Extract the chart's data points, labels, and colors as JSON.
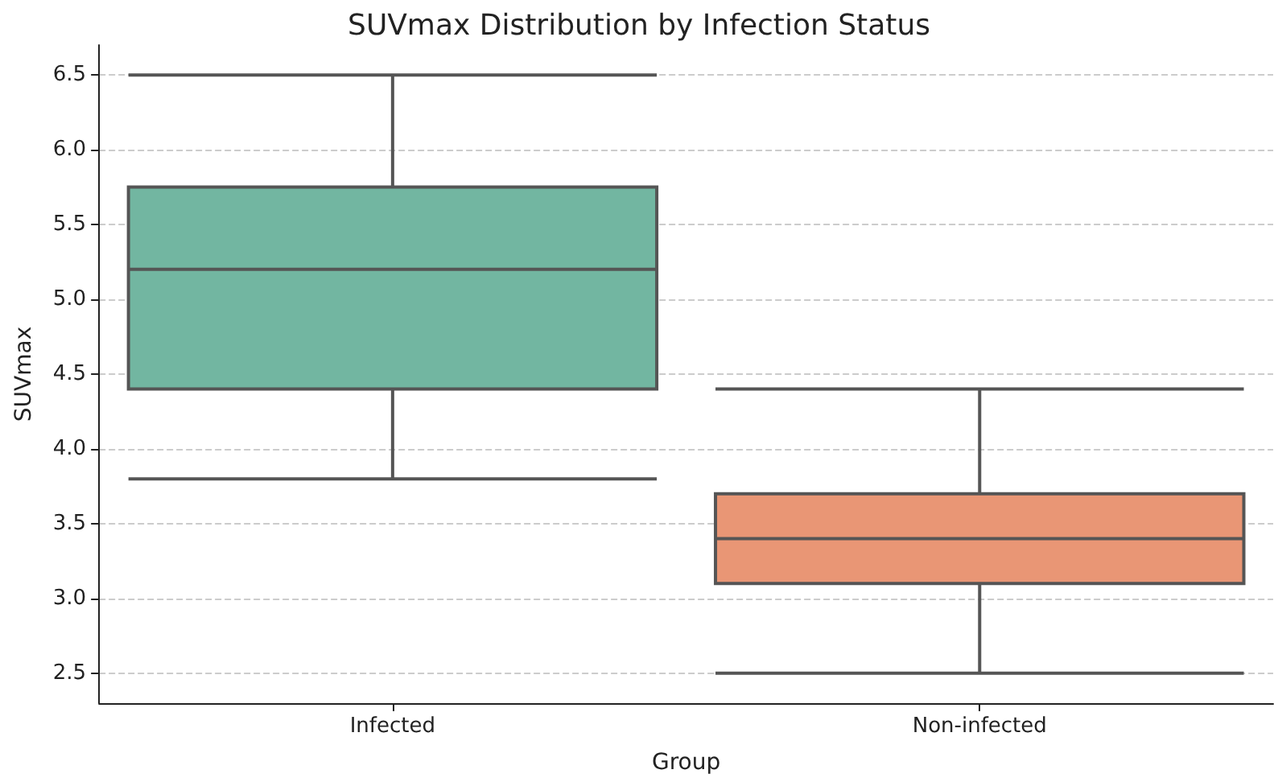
{
  "chart_data": {
    "type": "box",
    "title": "SUVmax Distribution by Infection Status",
    "xlabel": "Group",
    "ylabel": "SUVmax",
    "categories": [
      "Infected",
      "Non-infected"
    ],
    "boxes": [
      {
        "low": 3.8,
        "q1": 4.4,
        "median": 5.2,
        "q3": 5.75,
        "high": 6.5
      },
      {
        "low": 2.5,
        "q1": 3.1,
        "median": 3.4,
        "q3": 3.7,
        "high": 4.4
      }
    ],
    "colors": [
      "#72b6a1",
      "#e99675"
    ],
    "ylim": [
      2.3,
      6.7
    ],
    "yticks": [
      2.5,
      {
        "value": 3,
        "label": "3.0"
      },
      3.5,
      {
        "value": 4,
        "label": "4.0"
      },
      4.5,
      {
        "value": 5,
        "label": "5.0"
      },
      5.5,
      {
        "value": 6,
        "label": "6.0"
      },
      6.5
    ],
    "grid": "y"
  }
}
